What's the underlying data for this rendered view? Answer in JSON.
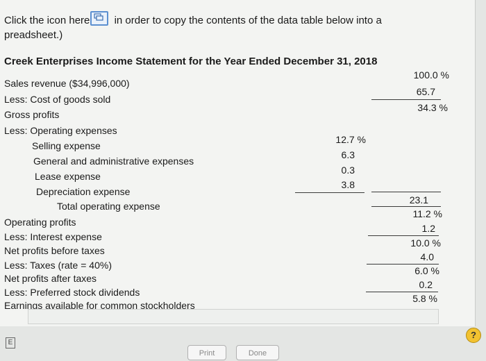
{
  "intro": {
    "before_icon": "Click the icon here",
    "after_icon": " in order to copy the contents of the data table below into a",
    "line2": "preadsheet.)"
  },
  "title": "Creek Enterprises Income Statement for the Year Ended December 31, 2018",
  "rows": {
    "sales": "Sales revenue ($34,996,000)",
    "cogs": "Less: Cost of goods sold",
    "gross": "Gross profits",
    "opex": "Less: Operating expenses",
    "selling": "Selling expense",
    "ga": "General and administrative expenses",
    "lease": "Lease expense",
    "dep": "Depreciation expense",
    "total_opex": "Total operating expense",
    "op_profit": "Operating profits",
    "interest": "Less: Interest expense",
    "pbt": "Net profits before taxes",
    "taxes": "Less: Taxes (rate = 40%)",
    "pat": "Net profits after taxes",
    "pref": "Less: Preferred stock dividends",
    "eac": "Earnings available for common stockholders"
  },
  "values": {
    "sales": "100.0 %",
    "cogs": "65.7",
    "gross": "34.3 %",
    "selling": "12.7 %",
    "ga": "6.3",
    "lease": "0.3",
    "dep": "3.8",
    "total_opex": "23.1",
    "op_profit": "11.2 %",
    "interest": "1.2",
    "pbt": "10.0 %",
    "taxes": "4.0",
    "pat": "6.0 %",
    "pref": "0.2",
    "eac": "5.8 %"
  },
  "buttons": {
    "print": "Print",
    "done": "Done"
  },
  "help": "?",
  "corner_icon": "E"
}
